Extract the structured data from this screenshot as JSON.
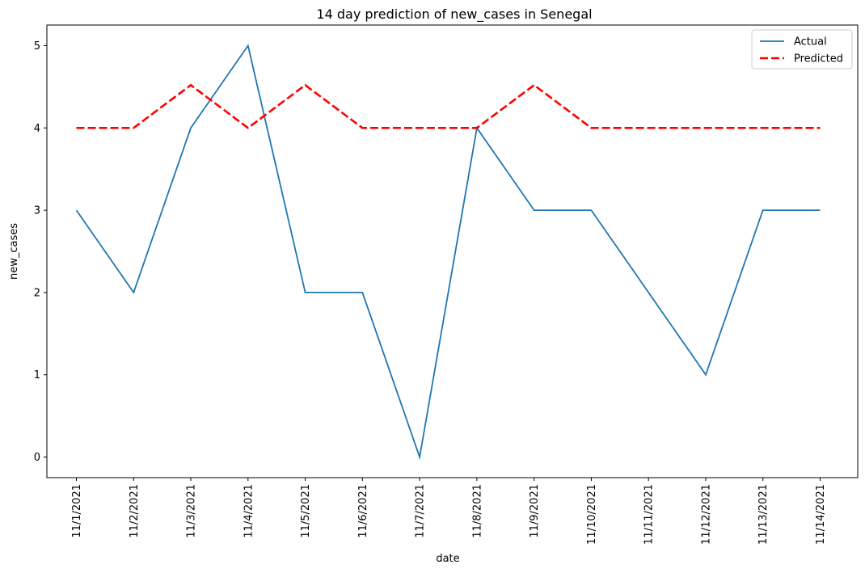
{
  "chart_data": {
    "type": "line",
    "title": "14 day prediction of new_cases in Senegal",
    "xlabel": "date",
    "ylabel": "new_cases",
    "categories": [
      "11/1/2021",
      "11/2/2021",
      "11/3/2021",
      "11/4/2021",
      "11/5/2021",
      "11/6/2021",
      "11/7/2021",
      "11/8/2021",
      "11/9/2021",
      "11/10/2021",
      "11/11/2021",
      "11/12/2021",
      "11/13/2021",
      "11/14/2021"
    ],
    "yticks": [
      0,
      1,
      2,
      3,
      4,
      5
    ],
    "ylim": [
      -0.25,
      5.25
    ],
    "grid": false,
    "legend_position": "top-right",
    "series": [
      {
        "name": "Actual",
        "color": "#1f77b4",
        "style": "solid",
        "values": [
          3,
          2,
          4,
          5,
          2,
          2,
          0,
          4,
          3,
          3,
          2,
          1,
          3,
          3
        ]
      },
      {
        "name": "Predicted",
        "color": "#ff0000",
        "style": "dashed",
        "values": [
          4,
          4,
          4.52,
          4,
          4.52,
          4,
          4,
          4,
          4.52,
          4,
          4,
          4,
          4,
          4
        ]
      }
    ]
  }
}
